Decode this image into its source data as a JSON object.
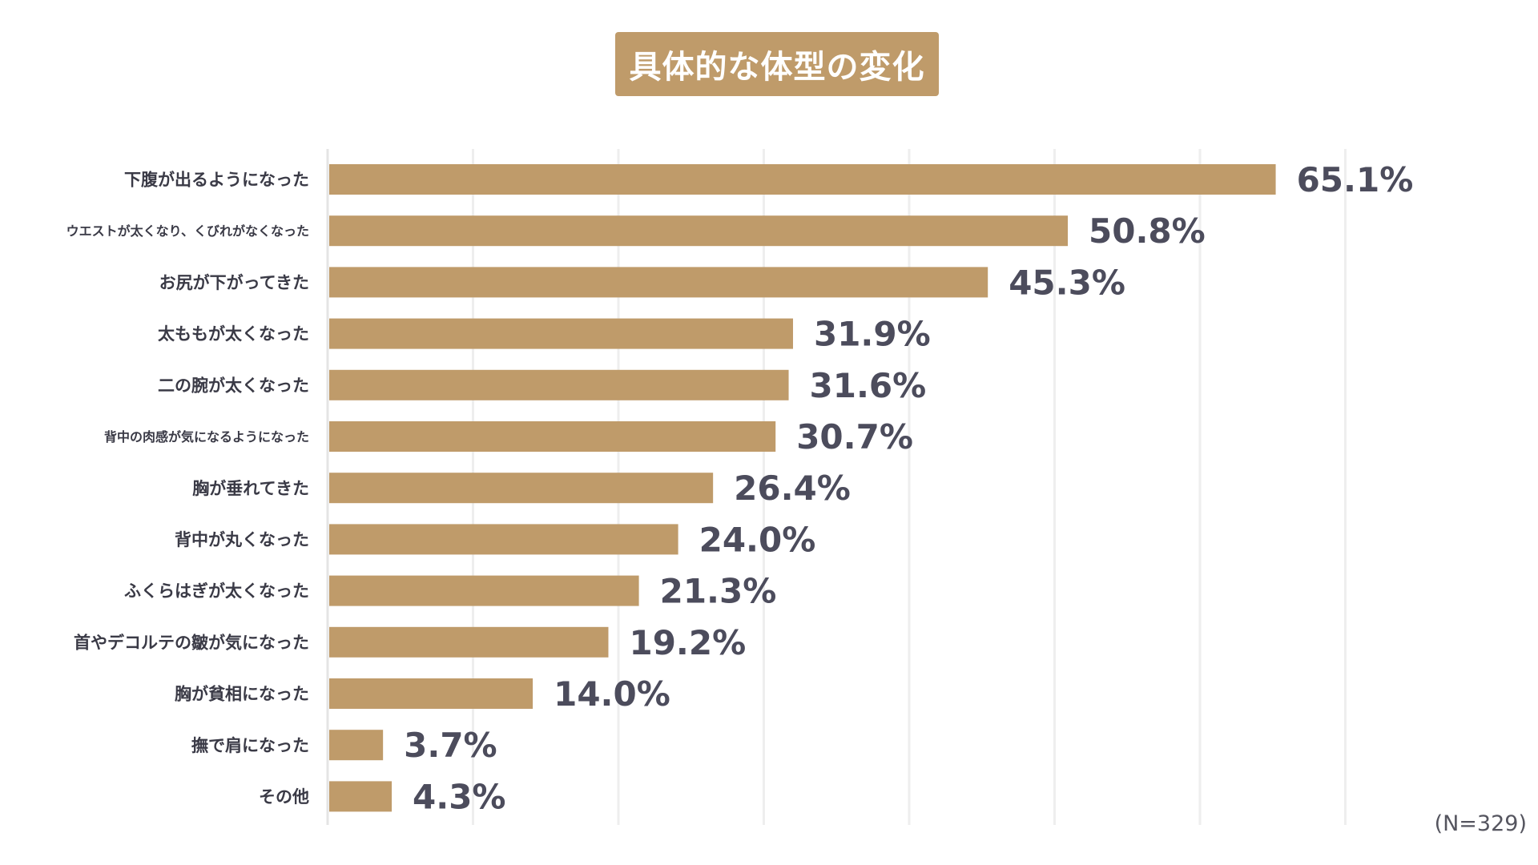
{
  "colors": {
    "bar": "#bf9b6a",
    "title_bg": "#bf9b6a",
    "grid": "#eeeeee",
    "axis": "#e4e4e4",
    "label": "#3a3a46",
    "value": "#4c4c5c"
  },
  "sample_note": "(N=329)",
  "chart_data": {
    "type": "bar",
    "orientation": "horizontal",
    "title": "具体的な体型の変化",
    "xlabel": "",
    "ylabel": "",
    "xlim": [
      0,
      70
    ],
    "grid": true,
    "legend": "none",
    "categories": [
      "下腹が出るようになった",
      "ウエストが太くなり、くびれがなくなった",
      "お尻が下がってきた",
      "太ももが太くなった",
      "二の腕が太くなった",
      "背中の肉感が気になるようになった",
      "胸が垂れてきた",
      "背中が丸くなった",
      "ふくらはぎが太くなった",
      "首やデコルテの皺が気になった",
      "胸が貧相になった",
      "撫で肩になった",
      "その他"
    ],
    "values": [
      65.1,
      50.8,
      45.3,
      31.9,
      31.6,
      30.7,
      26.4,
      24.0,
      21.3,
      19.2,
      14.0,
      3.7,
      4.3
    ],
    "value_labels": [
      "65.1%",
      "50.8%",
      "45.3%",
      "31.9%",
      "31.6%",
      "30.7%",
      "26.4%",
      "24.0%",
      "21.3%",
      "19.2%",
      "14.0%",
      "3.7%",
      "4.3%"
    ]
  }
}
